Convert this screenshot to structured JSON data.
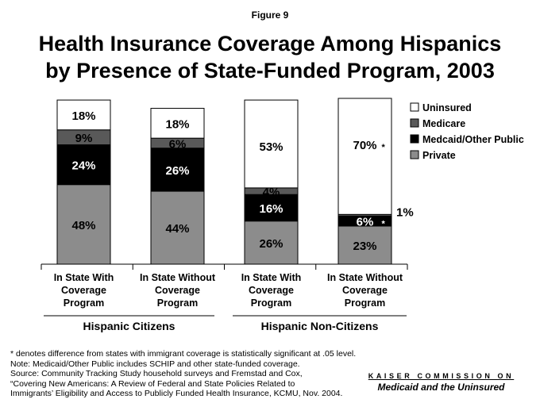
{
  "figure_label": "Figure 9",
  "title_lines": [
    "Health Insurance Coverage Among Hispanics",
    "by Presence of State-Funded Program, 2003"
  ],
  "chart_data": {
    "type": "bar",
    "stacked": true,
    "ylim": [
      0,
      100
    ],
    "categories": [
      [
        "In State With",
        "Coverage",
        "Program"
      ],
      [
        "In State Without",
        "Coverage",
        "Program"
      ],
      [
        "In State With",
        "Coverage",
        "Program"
      ],
      [
        "In State Without",
        "Coverage",
        "Program"
      ]
    ],
    "groups": [
      {
        "label": "Hispanic Citizens",
        "bars": [
          0,
          1
        ]
      },
      {
        "label": "Hispanic Non-Citizens",
        "bars": [
          2,
          3
        ]
      }
    ],
    "series": [
      {
        "name": "Private",
        "color": "#8c8c8c",
        "label_color": "#000000",
        "values": [
          48,
          44,
          26,
          23
        ],
        "labels": [
          "48%",
          "44%",
          "26%",
          "23%"
        ],
        "significant": [
          false,
          false,
          false,
          false
        ]
      },
      {
        "name": "Medcaid/Other Public",
        "color": "#000000",
        "label_color": "#ffffff",
        "values": [
          24,
          26,
          16,
          6
        ],
        "labels": [
          "24%",
          "26%",
          "16%",
          "6%"
        ],
        "significant": [
          false,
          false,
          false,
          true
        ]
      },
      {
        "name": "Medicare",
        "color": "#595959",
        "label_color": "#000000",
        "values": [
          9,
          6,
          4,
          1
        ],
        "labels": [
          "9%",
          "6%",
          "4%",
          "1%"
        ],
        "significant": [
          false,
          false,
          false,
          false
        ]
      },
      {
        "name": "Uninsured",
        "color": "#ffffff",
        "label_color": "#000000",
        "values": [
          18,
          18,
          53,
          70
        ],
        "labels": [
          "18%",
          "18%",
          "53%",
          "70%"
        ],
        "significant": [
          false,
          false,
          false,
          true
        ]
      }
    ],
    "legend_order": [
      "Uninsured",
      "Medicare",
      "Medcaid/Other Public",
      "Private"
    ],
    "legend_position": "right",
    "significance_marker": "*"
  },
  "footnotes": [
    "* denotes difference from states with immigrant coverage is statistically significant at .05 level.",
    "Note: Medicaid/Other Public includes SCHIP and other state-funded coverage.",
    "Source: Community Tracking Study household surveys and Fremstad and Cox,",
    "“Covering New Americans: A Review of Federal and State Policies Related to",
    "Immigrants’ Eligibility and Access to Publicly Funded Health Insurance, KCMU, Nov. 2004."
  ],
  "logo": {
    "line1": "KAISER COMMISSION ON",
    "line2": "Medicaid and the Uninsured"
  }
}
